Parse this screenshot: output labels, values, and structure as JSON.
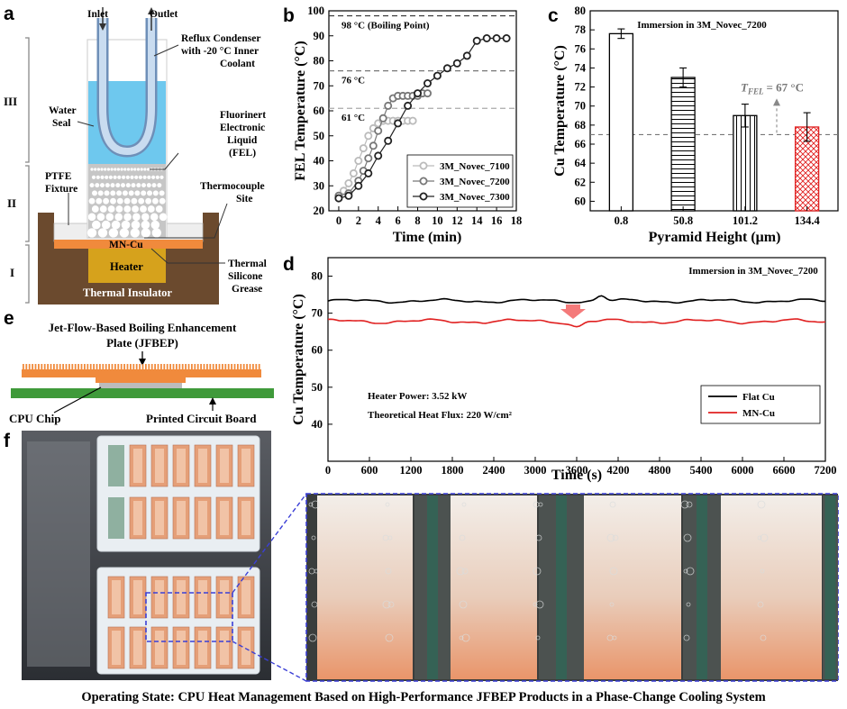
{
  "panel_labels": {
    "a": "a",
    "b": "b",
    "c": "c",
    "d": "d",
    "e": "e",
    "f": "f"
  },
  "panel_a": {
    "inlet": "Inlet",
    "outlet": "Outlet",
    "condenser_l1": "Reflux Condenser",
    "condenser_l2": "with -20 °C Inner",
    "condenser_l3": "Coolant",
    "water_seal_l1": "Water",
    "water_seal_l2": "Seal",
    "fel_l1": "Fluorinert",
    "fel_l2": "Electronic",
    "fel_l3": "Liquid",
    "fel_l4": "(FEL)",
    "ptfe_l1": "PTFE",
    "ptfe_l2": "Fixture",
    "thermocouple_l1": "Thermocouple",
    "thermocouple_l2": "Site",
    "mncu": "MN-Cu",
    "heater": "Heater",
    "grease_l1": "Thermal",
    "grease_l2": "Silicone",
    "grease_l3": "Grease",
    "insulator": "Thermal Insulator",
    "zones": [
      "III",
      "II",
      "I"
    ],
    "colors": {
      "water": "#6ec8ee",
      "copper": "#f08a3c",
      "heater": "#d6a21c",
      "insulator": "#6b4a2e",
      "fel": "#c6c6c6"
    }
  },
  "panel_e": {
    "title_l1": "Jet-Flow-Based Boiling Enhancement",
    "title_l2": "Plate (JFBEP)",
    "cpu": "CPU Chip",
    "pcb": "Printed Circuit Board",
    "colors": {
      "plate": "#f08a3c",
      "pcb": "#3f9a3a",
      "chip": "#bcbcbc"
    }
  },
  "caption": "Operating State: CPU Heat Management Based on High-Performance JFBEP Products in a Phase-Change Cooling System",
  "chart_data": [
    {
      "id": "b",
      "type": "line",
      "xlabel": "Time (min)",
      "ylabel": "FEL Temperature (°C)",
      "xlim": [
        -1,
        18
      ],
      "ylim": [
        20,
        100
      ],
      "xticks": [
        0,
        2,
        4,
        6,
        8,
        10,
        12,
        14,
        16,
        18
      ],
      "yticks": [
        20,
        30,
        40,
        50,
        60,
        70,
        80,
        90,
        100
      ],
      "reference_lines": [
        {
          "y": 98,
          "label": "98 °C (Boiling Point)",
          "color": "#333333"
        },
        {
          "y": 76,
          "label": "76 °C",
          "color": "#777777"
        },
        {
          "y": 61,
          "label": "61 °C",
          "color": "#aaaaaa"
        }
      ],
      "series": [
        {
          "name": "3M_Novec_7100",
          "color": "#bbbbbb",
          "x": [
            0,
            0.5,
            1,
            1.5,
            2,
            2.5,
            3,
            3.5,
            4,
            4.5,
            5,
            5.5,
            6,
            6.5,
            7,
            7.5
          ],
          "y": [
            26,
            28,
            31,
            35,
            40,
            45,
            50,
            53,
            55,
            56,
            56,
            56,
            56,
            56,
            56,
            56
          ]
        },
        {
          "name": "3M_Novec_7200",
          "color": "#777777",
          "x": [
            0,
            1,
            2,
            2.5,
            3,
            3.5,
            4,
            4.5,
            5,
            5.5,
            6,
            6.5,
            7,
            7.5,
            8,
            8.5,
            9
          ],
          "y": [
            26,
            27,
            32,
            36,
            41,
            46,
            52,
            57,
            62,
            65,
            66,
            66,
            66,
            66,
            66,
            67,
            67
          ]
        },
        {
          "name": "3M_Novec_7300",
          "color": "#222222",
          "x": [
            0,
            1,
            2,
            3,
            4,
            5,
            6,
            7,
            8,
            9,
            10,
            11,
            12,
            13,
            14,
            15,
            16,
            17
          ],
          "y": [
            25,
            26,
            30,
            35,
            42,
            48,
            55,
            62,
            67,
            71,
            74,
            77,
            79,
            82,
            88,
            89,
            89,
            89
          ]
        }
      ],
      "legend": "bottom-right"
    },
    {
      "id": "c",
      "type": "bar",
      "title": "Immersion in 3M_Novec_7200",
      "xlabel": "Pyramid Height (μm)",
      "ylabel": "Cu Temperature (°C)",
      "categories": [
        "0.8",
        "50.8",
        "101.2",
        "134.4"
      ],
      "values": [
        77.6,
        73.0,
        69.0,
        67.8
      ],
      "errors": [
        0.5,
        1.0,
        1.2,
        1.5
      ],
      "patterns": [
        "open",
        "horizontal",
        "vertical",
        "crosshatch"
      ],
      "edge_colors": [
        "#000000",
        "#000000",
        "#000000",
        "#e02020"
      ],
      "ylim": [
        59,
        80
      ],
      "yticks": [
        60,
        62,
        64,
        66,
        68,
        70,
        72,
        74,
        76,
        78,
        80
      ],
      "reference_line": {
        "y": 67,
        "label_sym": "T",
        "label_sub": "FEL",
        "label_val": "= 67 °C"
      }
    },
    {
      "id": "d",
      "type": "line",
      "title": "Immersion in 3M_Novec_7200",
      "xlabel": "Time (s)",
      "ylabel": "Cu Temperature (°C)",
      "xlim": [
        0,
        7200
      ],
      "ylim": [
        30,
        85
      ],
      "xticks": [
        0,
        600,
        1200,
        1800,
        2400,
        3000,
        3600,
        4200,
        4800,
        5400,
        6000,
        6600,
        7200
      ],
      "yticks": [
        40,
        50,
        60,
        70,
        80
      ],
      "series": [
        {
          "name": "Flat Cu",
          "color": "#000000",
          "mean": 73.3,
          "amplitude": 0.6,
          "bump_at": 3950,
          "bump": 1.5
        },
        {
          "name": "MN-Cu",
          "color": "#e02020",
          "mean": 67.8,
          "amplitude": 0.7,
          "dip_at": 3600,
          "dip": -1.4
        }
      ],
      "annotations": [
        "Heater Power: 3.52 kW",
        "Theoretical Heat Flux: 220 W/cm²"
      ],
      "legend": "bottom-right"
    }
  ]
}
